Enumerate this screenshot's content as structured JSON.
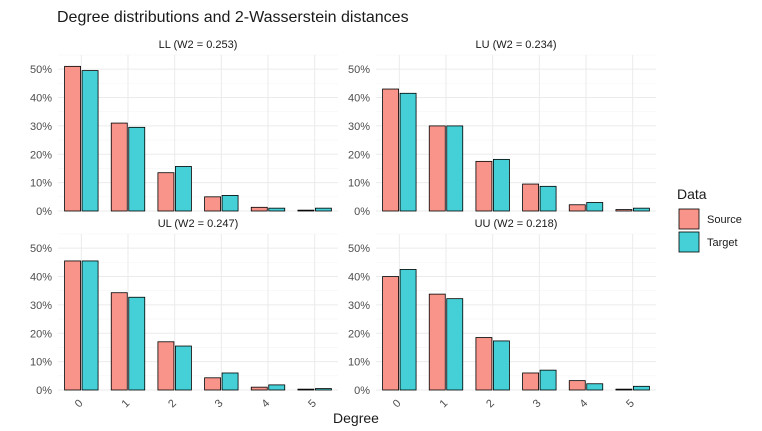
{
  "colors": {
    "source": "#F8948A",
    "target": "#44D0D6"
  },
  "chart_data": {
    "type": "bar",
    "title": "Degree distributions and 2-Wasserstein distances",
    "xlabel": "Degree",
    "ylabel": "",
    "categories": [
      "0",
      "1",
      "2",
      "3",
      "4",
      "5"
    ],
    "ylim": [
      0,
      0.55
    ],
    "yticks": [
      0,
      0.1,
      0.2,
      0.3,
      0.4,
      0.5
    ],
    "ytick_labels": [
      "0%",
      "10%",
      "20%",
      "30%",
      "40%",
      "50%"
    ],
    "legend": {
      "title": "Data",
      "position": "right",
      "entries": [
        "Source",
        "Target"
      ]
    },
    "facets": [
      {
        "label": "LL (W2 = 0.253)",
        "series": [
          {
            "name": "Source",
            "values": [
              0.51,
              0.31,
              0.135,
              0.05,
              0.013,
              0.003
            ]
          },
          {
            "name": "Target",
            "values": [
              0.495,
              0.295,
              0.157,
              0.055,
              0.01,
              0.01
            ]
          }
        ]
      },
      {
        "label": "LU (W2 = 0.234)",
        "series": [
          {
            "name": "Source",
            "values": [
              0.43,
              0.3,
              0.175,
              0.095,
              0.022,
              0.005
            ]
          },
          {
            "name": "Target",
            "values": [
              0.415,
              0.3,
              0.182,
              0.087,
              0.03,
              0.01
            ]
          }
        ]
      },
      {
        "label": "UL (W2 = 0.247)",
        "series": [
          {
            "name": "Source",
            "values": [
              0.455,
              0.343,
              0.17,
              0.043,
              0.01,
              0.003
            ]
          },
          {
            "name": "Target",
            "values": [
              0.455,
              0.327,
              0.155,
              0.06,
              0.018,
              0.005
            ]
          }
        ]
      },
      {
        "label": "UU (W2 = 0.218)",
        "series": [
          {
            "name": "Source",
            "values": [
              0.4,
              0.338,
              0.185,
              0.06,
              0.033,
              0.003
            ]
          },
          {
            "name": "Target",
            "values": [
              0.425,
              0.322,
              0.173,
              0.07,
              0.022,
              0.013
            ]
          }
        ]
      }
    ]
  }
}
